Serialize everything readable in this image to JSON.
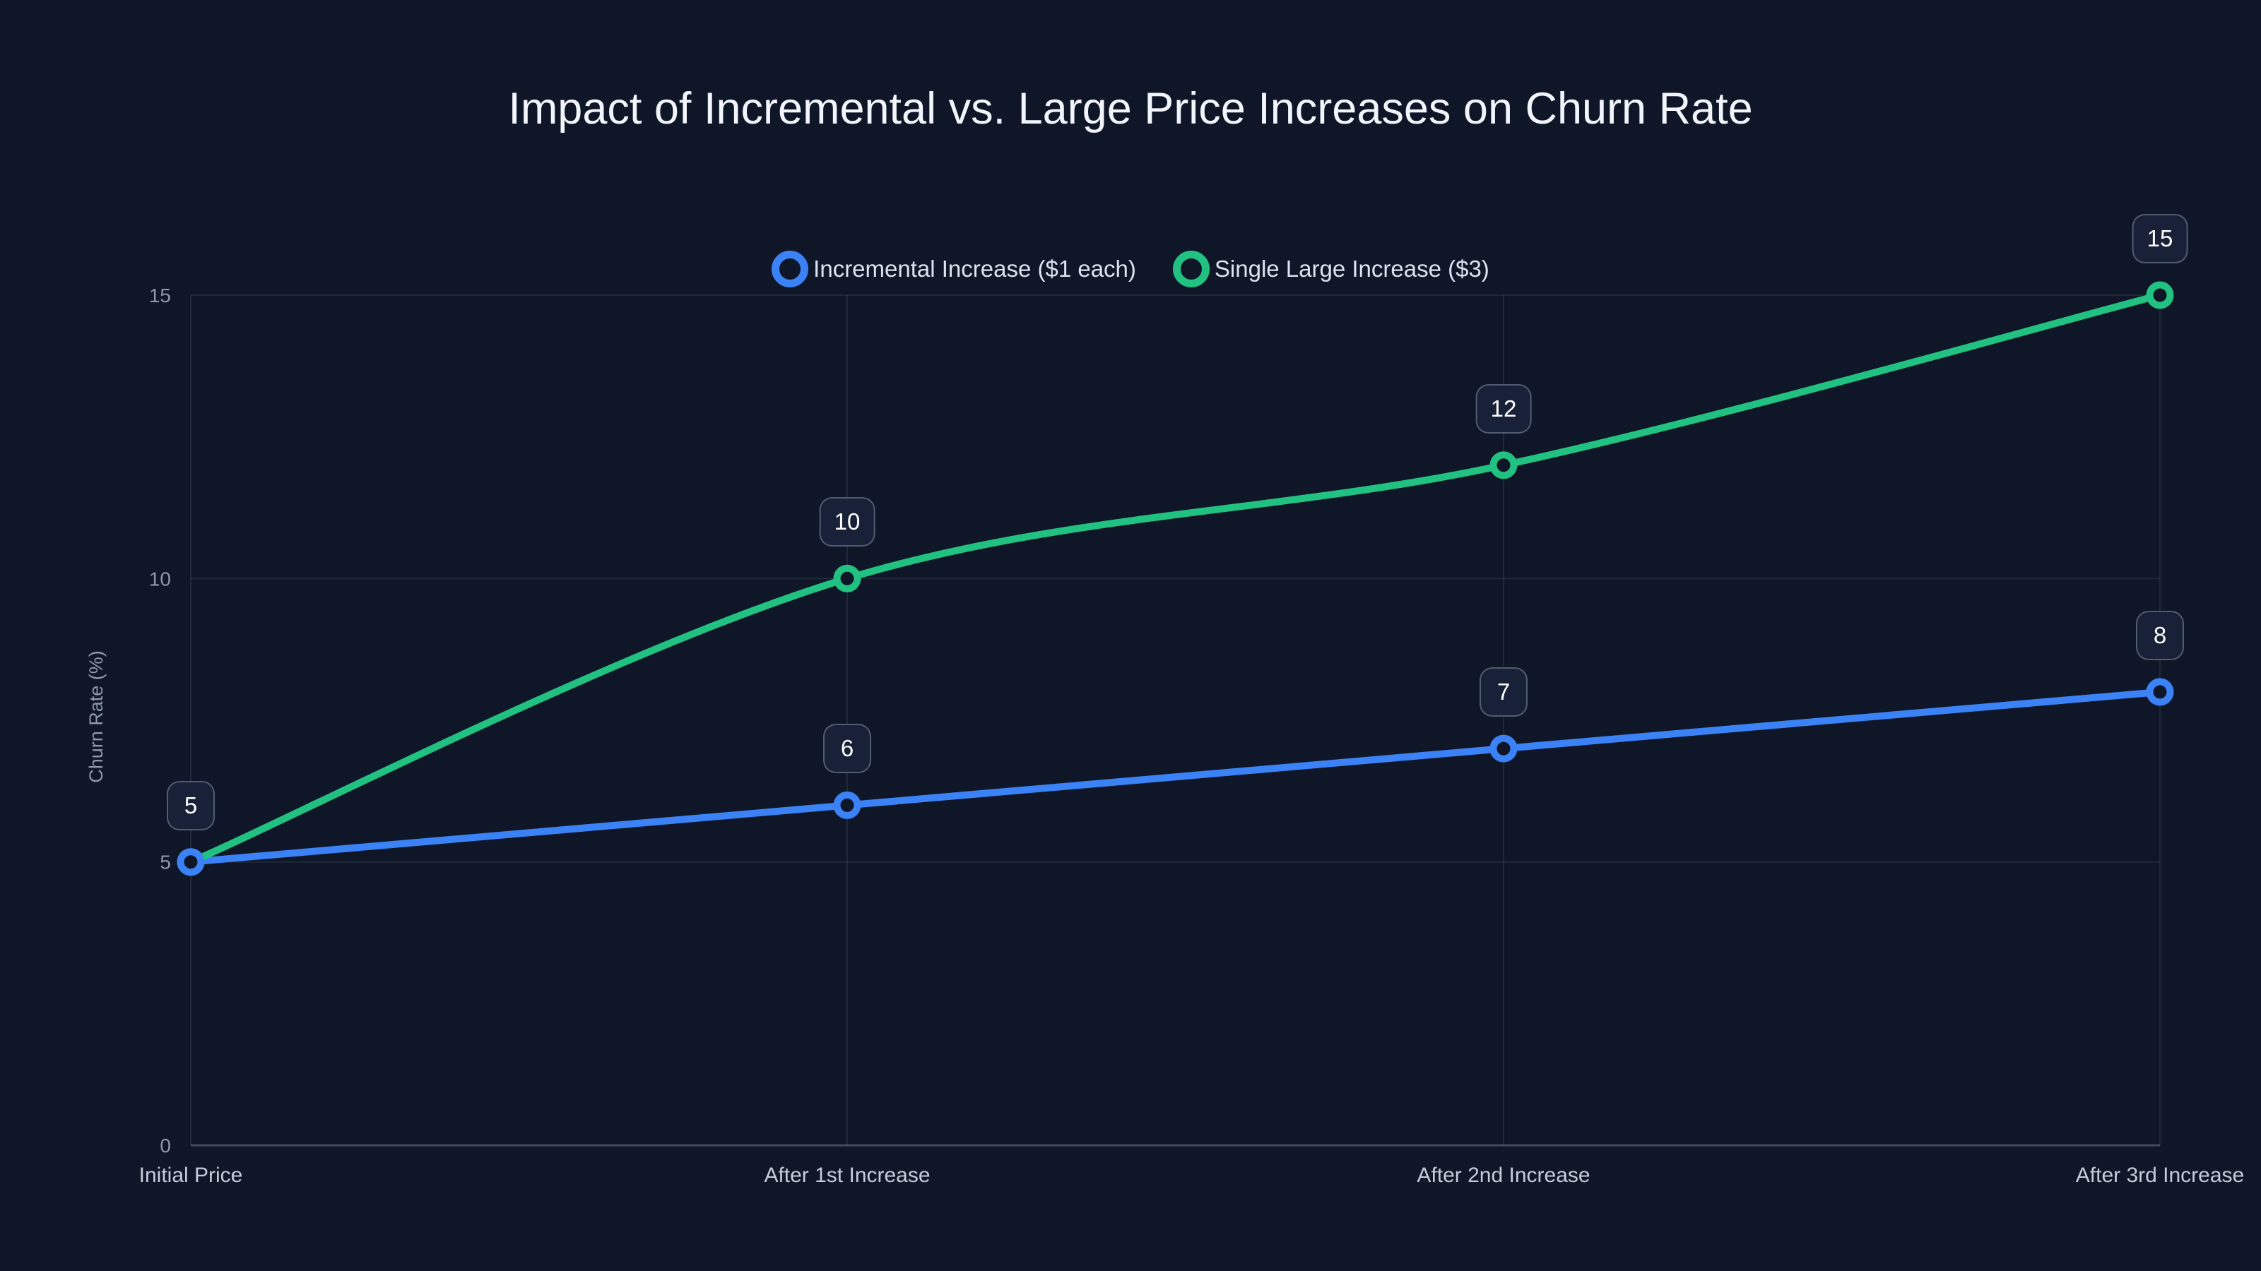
{
  "colors": {
    "background": "#0f1627",
    "grid": "rgba(148,163,184,0.13)",
    "axis_line": "rgba(148,163,184,0.38)",
    "title_text": "#f2f6fc",
    "tick_text": "#8e99ad",
    "x_label_text": "#c5ccd9",
    "legend_text": "#dce3ee",
    "label_text": "#ffffff",
    "label_box_bg": "#192138",
    "label_box_border": "rgba(148,163,184,0.45)",
    "series_blue": "#3b82f6",
    "series_green": "#21c181"
  },
  "chart_data": {
    "type": "line",
    "smooth": true,
    "title": "Impact of Incremental vs. Large Price Increases on Churn Rate",
    "categories": [
      "Initial Price",
      "After 1st Increase",
      "After 2nd Increase",
      "After 3rd Increase"
    ],
    "series": [
      {
        "name": "Incremental Increase ($1 each)",
        "color": "#3b82f6",
        "values": [
          5,
          6,
          7,
          8
        ]
      },
      {
        "name": "Single Large Increase ($3)",
        "color": "#21c181",
        "values": [
          5,
          10,
          12,
          15
        ]
      }
    ],
    "xlabel": "",
    "ylabel": "Churn Rate (%)",
    "ylim": [
      0,
      15
    ],
    "yticks": [
      0,
      5,
      10,
      15
    ],
    "y_tick_labels": [
      "0",
      "5",
      "10",
      "15"
    ],
    "grid": true,
    "legend_position": "top",
    "point_labels": true
  }
}
